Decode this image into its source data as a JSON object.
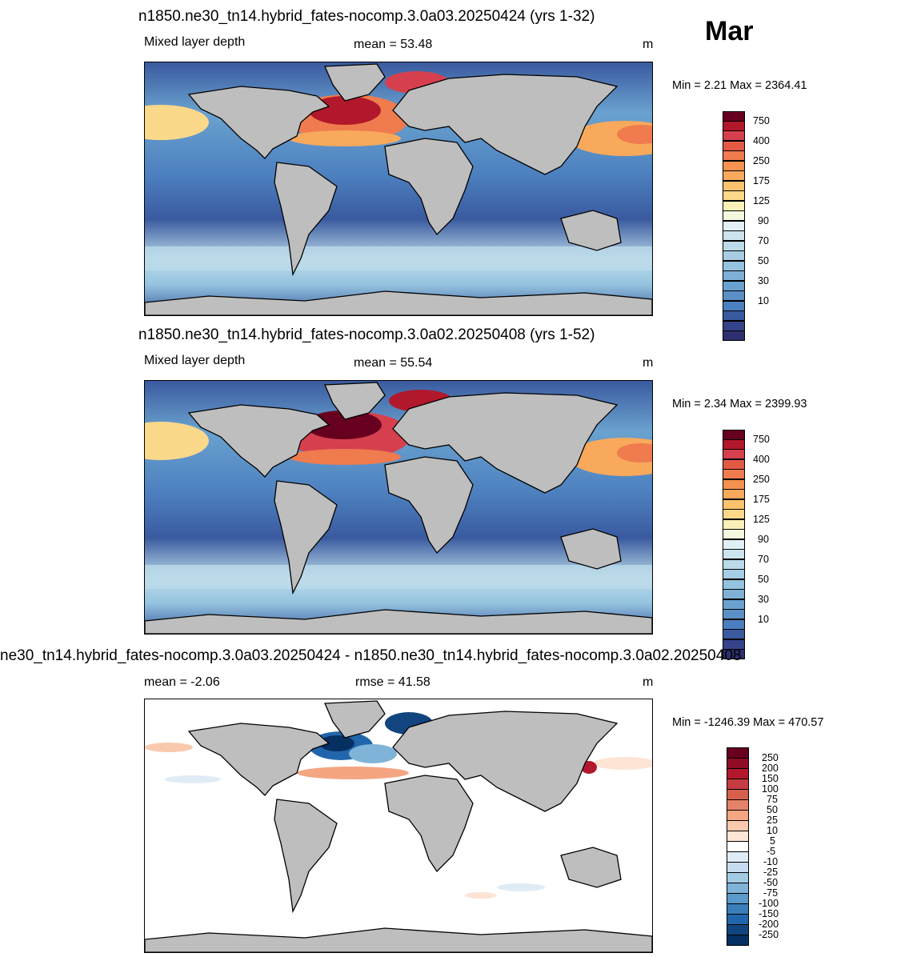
{
  "month": "Mar",
  "panels": [
    {
      "title": "n1850.ne30_tn14.hybrid_fates-nocomp.3.0a03.20250424 (yrs 1-32)",
      "left_label": "Mixed layer depth",
      "center_label": "mean =  53.48",
      "units": "m",
      "minmax": "Min =   2.21 Max = 2364.41",
      "colorbar": {
        "labels": [
          "750",
          "400",
          "250",
          "175",
          "125",
          "90",
          "70",
          "50",
          "30",
          "10"
        ],
        "colors": [
          "#67001f",
          "#b2182b",
          "#d6404e",
          "#ef7b4e",
          "#f8a95c",
          "#fbd88a",
          "#fbf7cf",
          "#e1f0f5",
          "#bcdbea",
          "#94c3df",
          "#6aa2cf",
          "#4c7fbf",
          "#3a5a9f",
          "#2d2f6e"
        ]
      }
    },
    {
      "title": "n1850.ne30_tn14.hybrid_fates-nocomp.3.0a02.20250408 (yrs 1-52)",
      "left_label": "Mixed layer depth",
      "center_label": "mean =  55.54",
      "units": "m",
      "minmax": "Min =   2.34 Max = 2399.93",
      "colorbar": {
        "labels": [
          "750",
          "400",
          "250",
          "175",
          "125",
          "90",
          "70",
          "50",
          "30",
          "10"
        ],
        "colors": [
          "#67001f",
          "#b2182b",
          "#d6404e",
          "#ef7b4e",
          "#f8a95c",
          "#fbd88a",
          "#fbf7cf",
          "#e1f0f5",
          "#bcdbea",
          "#94c3df",
          "#6aa2cf",
          "#4c7fbf",
          "#3a5a9f",
          "#2d2f6e"
        ]
      }
    },
    {
      "title": "ne30_tn14.hybrid_fates-nocomp.3.0a03.20250424 - n1850.ne30_tn14.hybrid_fates-nocomp.3.0a02.20250408",
      "left_label": "mean =  -2.06",
      "center_label": "rmse =  41.58",
      "units": "m",
      "minmax": "Min = -1246.39 Max = 470.57",
      "colorbar": {
        "labels": [
          "250",
          "200",
          "150",
          "100",
          "75",
          "50",
          "25",
          "10",
          "5",
          "-5",
          "-10",
          "-25",
          "-50",
          "-75",
          "-100",
          "-150",
          "-200",
          "-250"
        ],
        "colors": [
          "#67001f",
          "#8e0c25",
          "#b2182b",
          "#c63c42",
          "#d6604d",
          "#e58267",
          "#f4a582",
          "#f9c9ae",
          "#fde4d5",
          "#ffffff",
          "#e0ecf5",
          "#c6dbef",
          "#a3cae3",
          "#7fb4d8",
          "#5b9bcb",
          "#3a7fb9",
          "#2166ac",
          "#12457f",
          "#053061"
        ]
      }
    }
  ]
}
